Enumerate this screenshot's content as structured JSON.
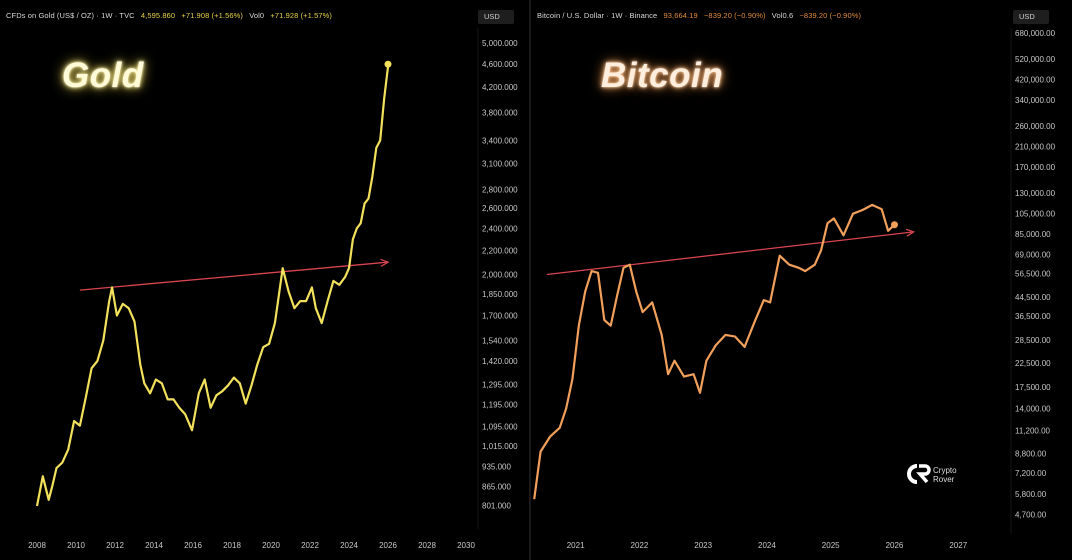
{
  "gold": {
    "header": {
      "title": "CFDs on Gold (US$ / OZ) · 1W · TVC",
      "price": "4,595.860",
      "change": "+71.908 (+1.56%)",
      "vol_label": "Vol0",
      "vol_change": "+71.928 (+1.57%)"
    },
    "currency": "USD",
    "big_label": "Gold"
  },
  "bitcoin": {
    "header": {
      "title": "Bitcoin / U.S. Dollar · 1W · Binance",
      "price": "93,664.19",
      "change": "−839.20 (−0.90%)",
      "vol_label": "Vol0.6",
      "vol_change": "−839.20 (−0.90%)"
    },
    "currency": "USD",
    "big_label": "Bitcoin"
  },
  "logo": {
    "line1": "Crypto",
    "line2": "Rover"
  },
  "chart_data": [
    {
      "type": "line",
      "name": "CFDs on Gold (US$ / OZ)",
      "scale": "log",
      "line_color": "#f2e15a",
      "trendline_color": "#d9454f",
      "xlim": [
        2008,
        2030
      ],
      "ylim": [
        760,
        5200
      ],
      "xticks": [
        "2008",
        "2010",
        "2012",
        "2014",
        "2016",
        "2018",
        "2020",
        "2022",
        "2024",
        "2026",
        "2028",
        "2030"
      ],
      "yticks": [
        "5,000.000",
        "4,600.000",
        "4,200.000",
        "3,800.000",
        "3,400.000",
        "3,100.000",
        "2,800.000",
        "2,600.000",
        "2,400.000",
        "2,200.000",
        "2,000.000",
        "1,850.000",
        "1,700.000",
        "1,540.000",
        "1,420.000",
        "1,295.000",
        "1,195.000",
        "1,095.000",
        "1,015.000",
        "935.000",
        "865.000",
        "801.000"
      ],
      "x": [
        2008.0,
        2008.3,
        2008.6,
        2008.8,
        2009.0,
        2009.3,
        2009.6,
        2009.9,
        2010.2,
        2010.5,
        2010.8,
        2011.1,
        2011.4,
        2011.7,
        2011.85,
        2012.1,
        2012.4,
        2012.7,
        2013.0,
        2013.3,
        2013.5,
        2013.8,
        2014.1,
        2014.4,
        2014.7,
        2015.0,
        2015.3,
        2015.6,
        2015.95,
        2016.3,
        2016.6,
        2016.9,
        2017.2,
        2017.5,
        2017.8,
        2018.1,
        2018.4,
        2018.7,
        2019.0,
        2019.3,
        2019.6,
        2019.9,
        2020.2,
        2020.6,
        2020.9,
        2021.2,
        2021.5,
        2021.8,
        2022.1,
        2022.3,
        2022.6,
        2022.9,
        2023.2,
        2023.5,
        2023.8,
        2024.0,
        2024.2,
        2024.4,
        2024.6,
        2024.8,
        2025.0,
        2025.2,
        2025.4,
        2025.6,
        2025.8,
        2026.0
      ],
      "y": [
        800,
        900,
        820,
        870,
        930,
        950,
        1000,
        1120,
        1100,
        1230,
        1380,
        1420,
        1540,
        1800,
        1900,
        1700,
        1780,
        1750,
        1660,
        1400,
        1300,
        1250,
        1320,
        1300,
        1220,
        1220,
        1180,
        1150,
        1080,
        1250,
        1320,
        1180,
        1240,
        1260,
        1290,
        1330,
        1300,
        1200,
        1290,
        1400,
        1500,
        1520,
        1650,
        2050,
        1870,
        1750,
        1800,
        1800,
        1900,
        1750,
        1650,
        1800,
        1950,
        1920,
        1980,
        2050,
        2300,
        2400,
        2450,
        2650,
        2700,
        2950,
        3300,
        3400,
        4000,
        4550
      ],
      "trendline": {
        "x": [
          2010.2,
          2026.0
        ],
        "y": [
          1880,
          2100
        ]
      },
      "end_marker": {
        "x": 2026.0,
        "y": 4595.86
      }
    },
    {
      "type": "line",
      "name": "Bitcoin / U.S. Dollar",
      "scale": "log",
      "line_color": "#f0a05a",
      "trendline_color": "#d9454f",
      "xlim": [
        2020.3,
        2027.2
      ],
      "ylim": [
        4300,
        700000
      ],
      "xticks": [
        "2021",
        "2022",
        "2023",
        "2024",
        "2025",
        "2026",
        "2027"
      ],
      "yticks": [
        "680,000.00",
        "520,000.00",
        "420,000.00",
        "340,000.00",
        "260,000.00",
        "210,000.00",
        "170,000.00",
        "130,000.00",
        "105,000.00",
        "85,000.00",
        "69,000.00",
        "56,500.00",
        "44,500.00",
        "36,500.00",
        "28,500.00",
        "22,500.00",
        "17,500.00",
        "14,000.00",
        "11,200.00",
        "8,800.00",
        "7,200.00",
        "5,800.00",
        "4,700.00"
      ],
      "x": [
        2020.35,
        2020.45,
        2020.6,
        2020.75,
        2020.85,
        2020.95,
        2021.05,
        2021.15,
        2021.25,
        2021.35,
        2021.45,
        2021.55,
        2021.65,
        2021.75,
        2021.85,
        2021.95,
        2022.05,
        2022.2,
        2022.35,
        2022.45,
        2022.55,
        2022.7,
        2022.85,
        2022.95,
        2023.05,
        2023.2,
        2023.35,
        2023.5,
        2023.65,
        2023.8,
        2023.95,
        2024.05,
        2024.2,
        2024.35,
        2024.5,
        2024.6,
        2024.75,
        2024.85,
        2024.95,
        2025.05,
        2025.2,
        2025.35,
        2025.5,
        2025.65,
        2025.8,
        2025.9,
        2026.0
      ],
      "y": [
        5500,
        9000,
        10500,
        11500,
        14000,
        19000,
        33000,
        47000,
        58000,
        57000,
        35000,
        33000,
        45000,
        60000,
        62000,
        47000,
        38000,
        42000,
        30000,
        20000,
        23000,
        19500,
        20000,
        16500,
        23000,
        27000,
        30000,
        29500,
        26500,
        34000,
        43000,
        42000,
        68000,
        62000,
        60000,
        58000,
        62000,
        72000,
        95000,
        100000,
        84000,
        105000,
        109000,
        115000,
        110000,
        88000,
        93664
      ],
      "trendline": {
        "x": [
          2020.55,
          2026.3
        ],
        "y": [
          56000,
          87000
        ]
      },
      "end_marker": {
        "x": 2026.0,
        "y": 93664.19
      }
    }
  ]
}
